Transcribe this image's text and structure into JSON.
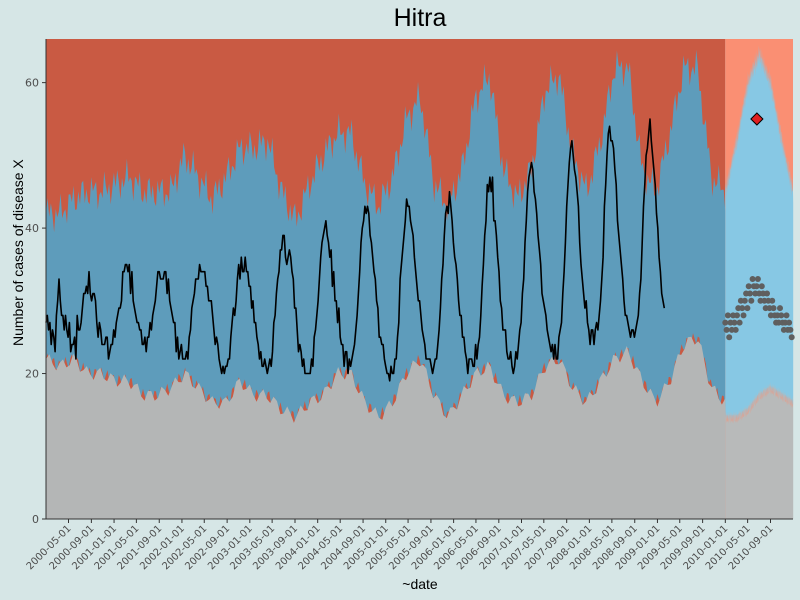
{
  "chart_data": {
    "type": "line",
    "title": "Hitra",
    "xlabel": "~date",
    "ylabel": "Number of cases of disease X",
    "ylim": [
      0,
      66
    ],
    "xlim": [
      "2000-01-01",
      "2010-12-31"
    ],
    "y_ticks": [
      0,
      20,
      40,
      60
    ],
    "x_ticks": [
      "2000-05-01",
      "2000-09-01",
      "2001-01-01",
      "2001-05-01",
      "2001-09-01",
      "2002-01-01",
      "2002-05-01",
      "2002-09-01",
      "2003-01-01",
      "2003-05-01",
      "2003-09-01",
      "2004-01-01",
      "2004-05-01",
      "2004-09-01",
      "2005-01-01",
      "2005-05-01",
      "2005-09-01",
      "2006-01-01",
      "2006-05-01",
      "2006-09-01",
      "2007-01-01",
      "2007-05-01",
      "2007-09-01",
      "2008-01-01",
      "2008-05-01",
      "2008-09-01",
      "2009-01-01",
      "2009-05-01",
      "2009-09-01",
      "2010-01-01",
      "2010-05-01",
      "2010-09-01"
    ],
    "grid": false,
    "baseline_period": [
      "2000-01-01",
      "2009-12-31"
    ],
    "prediction_period": [
      "2010-01-01",
      "2010-12-31"
    ],
    "baseline_band_upper_avg": [
      42,
      42,
      44,
      45,
      45,
      46,
      47,
      45,
      45,
      45,
      50,
      47,
      44,
      47,
      51,
      51,
      52,
      45,
      41,
      46,
      50,
      53,
      53,
      46,
      43,
      47,
      55,
      58,
      46,
      43,
      48,
      58,
      61,
      48,
      44,
      48,
      59,
      61,
      50,
      45,
      52,
      62,
      62,
      48,
      45,
      53,
      62,
      62,
      47,
      45
    ],
    "baseline_band_lower_avg": [
      22,
      21,
      22,
      20,
      20,
      19,
      19,
      17,
      17,
      18,
      20,
      18,
      16,
      16,
      19,
      17,
      17,
      15,
      14,
      16,
      17,
      20,
      20,
      16,
      14,
      16,
      20,
      22,
      17,
      14,
      17,
      20,
      21,
      17,
      16,
      17,
      21,
      22,
      18,
      16,
      19,
      22,
      23,
      19,
      16,
      19,
      24,
      25,
      18,
      16
    ],
    "pred_band_upper": [
      45,
      52,
      60,
      64,
      60,
      52,
      45
    ],
    "pred_band_lower": [
      14,
      14,
      15,
      17,
      18,
      17,
      16
    ],
    "series": [
      {
        "name": "",
        "type": "line",
        "x_start": "2000-01-01",
        "step_days": 7,
        "values": [
          27,
          28,
          26,
          27,
          24,
          26,
          25,
          23,
          28,
          30,
          33,
          30,
          28,
          28,
          26,
          28,
          26,
          25,
          27,
          23,
          24,
          24,
          25,
          22,
          28,
          26,
          26,
          27,
          29,
          31,
          31,
          32,
          31,
          34,
          31,
          30,
          31,
          31,
          30,
          27,
          25,
          27,
          26,
          24,
          24,
          24,
          25,
          25,
          22,
          23,
          24,
          24,
          26,
          25,
          27,
          28,
          29,
          29,
          30,
          34,
          34,
          35,
          35,
          34,
          35,
          31,
          34,
          30,
          29,
          28,
          27,
          27,
          26,
          26,
          24,
          24,
          25,
          23,
          25,
          25,
          27,
          26,
          28,
          29,
          30,
          32,
          34,
          34,
          33,
          33,
          33,
          34,
          34,
          31,
          33,
          30,
          29,
          28,
          27,
          27,
          23,
          25,
          22,
          23,
          24,
          22,
          22,
          22,
          23,
          22,
          25,
          26,
          29,
          30,
          31,
          33,
          33,
          33,
          35,
          34,
          34,
          34,
          34,
          32,
          32,
          30,
          30,
          30,
          28,
          26,
          24,
          25,
          24,
          22,
          21,
          20,
          21,
          20,
          21,
          21,
          22,
          22,
          25,
          27,
          29,
          28,
          30,
          33,
          35,
          33,
          36,
          34,
          34,
          36,
          34,
          34,
          32,
          32,
          29,
          30,
          27,
          27,
          25,
          24,
          22,
          23,
          21,
          21,
          22,
          21,
          20,
          21,
          22,
          21,
          23,
          27,
          28,
          31,
          33,
          34,
          37,
          37,
          39,
          39,
          36,
          35,
          36,
          37,
          36,
          34,
          33,
          29,
          29,
          26,
          23,
          24,
          23,
          21,
          22,
          20,
          20,
          20,
          20,
          20,
          22,
          21,
          25,
          26,
          28,
          30,
          33,
          36,
          38,
          39,
          40,
          41,
          39,
          38,
          36,
          37,
          32,
          34,
          30,
          30,
          27,
          29,
          25,
          24,
          24,
          21,
          23,
          23,
          20,
          22,
          21,
          22,
          23,
          24,
          26,
          28,
          31,
          34,
          38,
          40,
          41,
          43,
          42,
          43,
          42,
          39,
          38,
          36,
          34,
          33,
          30,
          29,
          25,
          25,
          24,
          24,
          22,
          21,
          20,
          20,
          19,
          21,
          20,
          20,
          22,
          22,
          25,
          27,
          33,
          35,
          37,
          39,
          41,
          44,
          43,
          43,
          41,
          40,
          39,
          36,
          34,
          32,
          30,
          30,
          28,
          26,
          25,
          24,
          22,
          22,
          22,
          22,
          21,
          20,
          21,
          22,
          22,
          24,
          26,
          29,
          33,
          35,
          39,
          42,
          43,
          42,
          45,
          43,
          41,
          38,
          36,
          35,
          33,
          30,
          28,
          28,
          25,
          25,
          23,
          22,
          20,
          22,
          22,
          22,
          21,
          21,
          24,
          22,
          24,
          25,
          28,
          32,
          35,
          39,
          41,
          46,
          45,
          47,
          45,
          47,
          41,
          41,
          39,
          36,
          34,
          30,
          29,
          26,
          26,
          26,
          23,
          22,
          22,
          23,
          21,
          20,
          21,
          23,
          22,
          24,
          26,
          27,
          31,
          33,
          38,
          41,
          45,
          47,
          48,
          49,
          48,
          45,
          44,
          42,
          39,
          37,
          35,
          31,
          30,
          29,
          28,
          26,
          25,
          24,
          23,
          24,
          22,
          24,
          22,
          22,
          25,
          26,
          27,
          31,
          34,
          38,
          43,
          46,
          49,
          51,
          52,
          50,
          48,
          47,
          45,
          43,
          38,
          35,
          33,
          31,
          29,
          30,
          27,
          26,
          24,
          26,
          26,
          24,
          26,
          27,
          26,
          28,
          30,
          33,
          36,
          43,
          46,
          50,
          53,
          54,
          52,
          52,
          51,
          48,
          46,
          41,
          39,
          37,
          35,
          33,
          30,
          28,
          28,
          27,
          26,
          25,
          26,
          26,
          25,
          26,
          27,
          28,
          31,
          33,
          38,
          43,
          46,
          50,
          51,
          53,
          55,
          52,
          50,
          48,
          46,
          42,
          40,
          36,
          34,
          31,
          30,
          29
        ]
      },
      {
        "name": "",
        "type": "scatter",
        "x_start": "2010-01-01",
        "step_days": 7,
        "values": [
          27,
          26,
          28,
          25,
          27,
          26,
          28,
          27,
          26,
          28,
          29,
          27,
          30,
          29,
          28,
          30,
          31,
          29,
          32,
          31,
          30,
          33,
          32,
          31,
          32,
          33,
          31,
          30,
          32,
          31,
          30,
          29,
          31,
          30,
          29,
          28,
          30,
          29,
          28,
          27,
          28,
          27,
          29,
          28,
          27,
          26,
          27,
          28,
          26,
          27,
          26,
          25
        ]
      },
      {
        "name": "",
        "type": "point",
        "x": "2010-06-20",
        "y": 55
      }
    ]
  }
}
